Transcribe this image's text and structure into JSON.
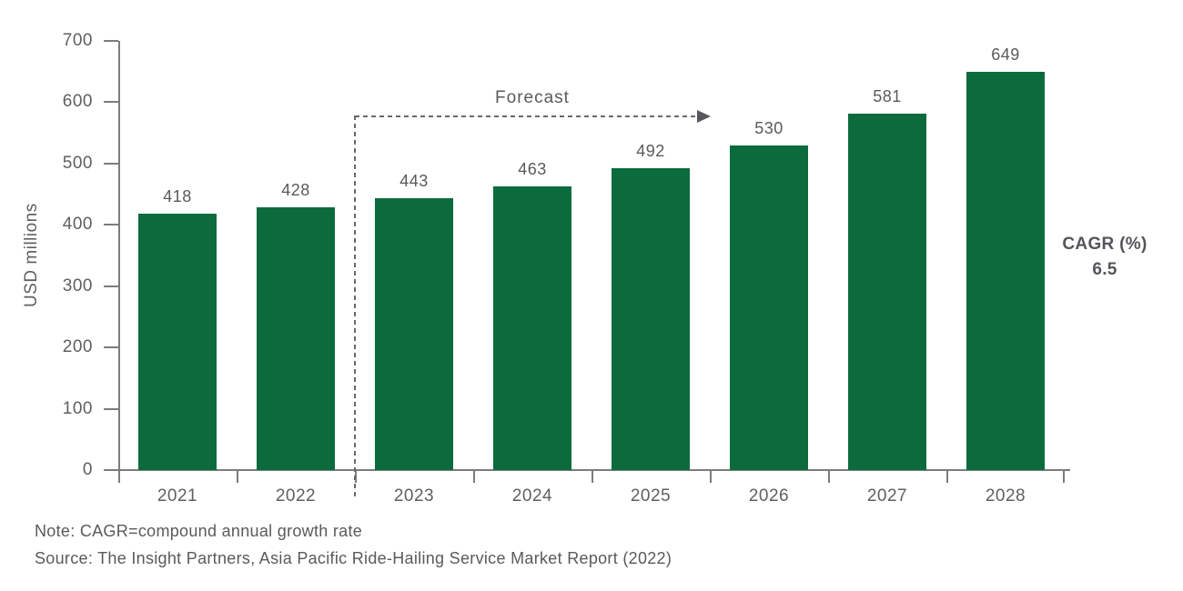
{
  "chart_data": {
    "type": "bar",
    "title": "",
    "categories": [
      "2021",
      "2022",
      "2023",
      "2024",
      "2025",
      "2026",
      "2027",
      "2028"
    ],
    "values": [
      418,
      428,
      443,
      463,
      492,
      530,
      581,
      649
    ],
    "xlabel": "",
    "ylabel": "USD millions",
    "ylim": [
      0,
      700
    ],
    "ytick_step": 100,
    "grid": "off",
    "legend": "none",
    "bar_color": "#0B6B3D",
    "forecast_start_index": 2,
    "forecast_arrow_end_index": 5
  },
  "annotations": {
    "forecast_label": "Forecast",
    "cagr_label": "CAGR (%)",
    "cagr_value": "6.5"
  },
  "notes": {
    "note": "Note: CAGR=compound annual growth rate",
    "source": "Source: The Insight Partners, Asia Pacific Ride-Hailing Service Market Report (2022)"
  },
  "colors": {
    "bar": "#0B6B3D",
    "axis": "#7C7C7C",
    "text": "#5A5A5A",
    "annotation_line": "#666A6D",
    "cagr_text": "#54545A"
  }
}
